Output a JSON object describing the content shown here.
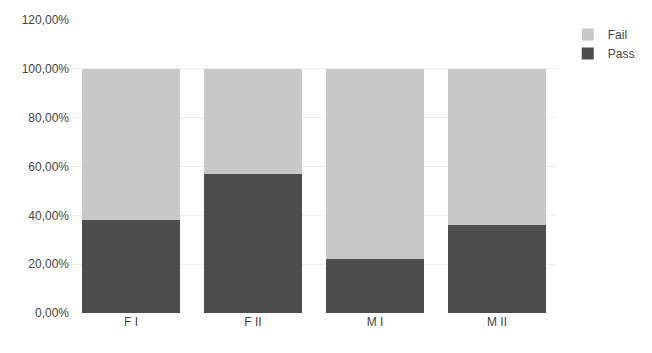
{
  "chart_data": {
    "type": "bar",
    "stacked": true,
    "categories": [
      "F I",
      "F II",
      "M I",
      "M II"
    ],
    "series": [
      {
        "name": "Pass",
        "color": "#4d4d4d",
        "values": [
          0.38,
          0.57,
          0.22,
          0.36
        ]
      },
      {
        "name": "Fail",
        "color": "#c8c8c8",
        "values": [
          0.62,
          0.43,
          0.78,
          0.64
        ]
      }
    ],
    "ylim": [
      0,
      1.2
    ],
    "yticks": [
      {
        "value": 0.0,
        "label": "0,00%"
      },
      {
        "value": 0.2,
        "label": "20,00%"
      },
      {
        "value": 0.4,
        "label": "40,00%"
      },
      {
        "value": 0.6,
        "label": "60,00%"
      },
      {
        "value": 0.8,
        "label": "80,00%"
      },
      {
        "value": 1.0,
        "label": "100,00%"
      },
      {
        "value": 1.2,
        "label": "120,00%"
      }
    ],
    "grid": true,
    "legend": "upper right"
  }
}
